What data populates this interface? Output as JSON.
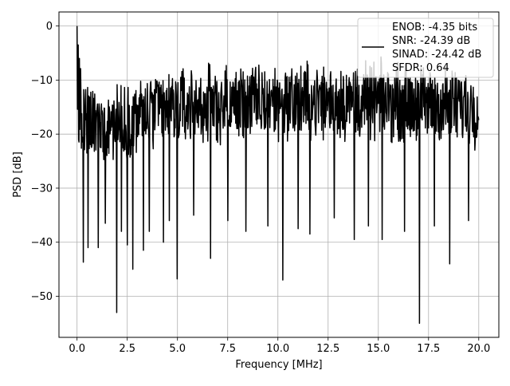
{
  "chart_data": {
    "type": "line",
    "title": "",
    "xlabel": "Frequency [MHz]",
    "ylabel": "PSD [dB]",
    "xlim": [
      -0.9,
      21.0
    ],
    "ylim": [
      -57.6,
      2.6
    ],
    "xticks": [
      0.0,
      2.5,
      5.0,
      7.5,
      10.0,
      12.5,
      15.0,
      17.5,
      20.0
    ],
    "xtick_labels": [
      "0.0",
      "2.5",
      "5.0",
      "7.5",
      "10.0",
      "12.5",
      "15.0",
      "17.5",
      "20.0"
    ],
    "yticks": [
      0,
      -10,
      -20,
      -30,
      -40,
      -50
    ],
    "ytick_labels": [
      "0",
      "−10",
      "−20",
      "−30",
      "−40",
      "−50"
    ],
    "grid": true,
    "legend": {
      "placement": "upper-right",
      "lines": [
        "ENOB: -4.35 bits",
        "SNR: -24.39 dB",
        "SINAD: -24.42 dB",
        "SFDR: 0.64"
      ]
    },
    "series": [
      {
        "color": "#000000",
        "x_range": [
          0.0,
          20.0
        ],
        "num_points": 1024,
        "noise_floor_db": [
          -30,
          -10
        ],
        "trend": {
          "x": [
            0.0,
            0.3,
            1.0,
            2.5,
            5.0,
            10.0,
            15.0,
            20.0
          ],
          "upper_envelope_db": [
            -4,
            -9,
            -11,
            -9,
            -7,
            -6,
            -6,
            -7
          ],
          "lower_envelope_db": [
            -31,
            -27,
            -26,
            -25,
            -23,
            -22,
            -22,
            -23
          ]
        },
        "peaks": [
          {
            "x": 0.0,
            "y": 0.0
          },
          {
            "x": 0.05,
            "y": -3.5
          },
          {
            "x": 0.12,
            "y": -6.0
          }
        ],
        "dips": [
          {
            "x": 0.0,
            "y": -31.0
          },
          {
            "x": 0.32,
            "y": -43.7
          },
          {
            "x": 0.55,
            "y": -41.0
          },
          {
            "x": 1.05,
            "y": -41.0
          },
          {
            "x": 1.4,
            "y": -36.5
          },
          {
            "x": 1.98,
            "y": -53.0
          },
          {
            "x": 2.2,
            "y": -38.0
          },
          {
            "x": 2.5,
            "y": -40.5
          },
          {
            "x": 2.78,
            "y": -45.0
          },
          {
            "x": 3.3,
            "y": -41.5
          },
          {
            "x": 3.6,
            "y": -38.0
          },
          {
            "x": 4.3,
            "y": -40.0
          },
          {
            "x": 4.6,
            "y": -36.0
          },
          {
            "x": 4.98,
            "y": -46.8
          },
          {
            "x": 5.8,
            "y": -35.0
          },
          {
            "x": 6.65,
            "y": -43.0
          },
          {
            "x": 7.5,
            "y": -36.0
          },
          {
            "x": 8.4,
            "y": -38.0
          },
          {
            "x": 9.5,
            "y": -37.0
          },
          {
            "x": 10.25,
            "y": -47.0
          },
          {
            "x": 11.0,
            "y": -37.5
          },
          {
            "x": 11.6,
            "y": -38.5
          },
          {
            "x": 12.8,
            "y": -35.5
          },
          {
            "x": 13.8,
            "y": -39.5
          },
          {
            "x": 14.5,
            "y": -37.0
          },
          {
            "x": 15.2,
            "y": -39.5
          },
          {
            "x": 16.3,
            "y": -38.0
          },
          {
            "x": 17.05,
            "y": -55.0
          },
          {
            "x": 17.8,
            "y": -37.0
          },
          {
            "x": 18.55,
            "y": -44.0
          },
          {
            "x": 19.5,
            "y": -36.0
          }
        ]
      }
    ]
  }
}
